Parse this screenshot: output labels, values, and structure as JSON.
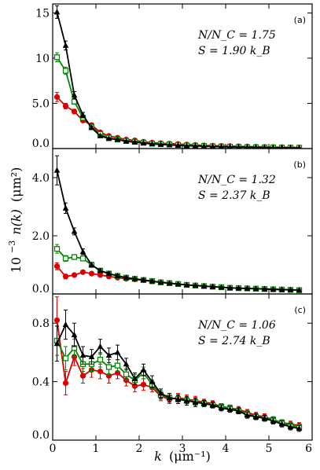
{
  "chart_data": [
    {
      "type": "line",
      "panel_label": "(a)",
      "annotation_lines": [
        "N/N_C = 1.75",
        "S = 1.90 k_B"
      ],
      "xlim": [
        0,
        6
      ],
      "ylim": [
        0,
        16
      ],
      "ytick_values": [
        0,
        5,
        10,
        15
      ],
      "ytick_labels": [
        "0.0",
        "5.0",
        "10",
        "15"
      ],
      "series": [
        {
          "marker": "triangle",
          "color": "#000000",
          "x": [
            0.1,
            0.3,
            0.5,
            0.7,
            0.9,
            1.1,
            1.3,
            1.5,
            1.7,
            1.9,
            2.1,
            2.3,
            2.5,
            2.7,
            2.9,
            3.1,
            3.3,
            3.5,
            3.7,
            3.9,
            4.1,
            4.3,
            4.5,
            4.7,
            4.9,
            5.1,
            5.3,
            5.5,
            5.7
          ],
          "y": [
            15.1,
            11.4,
            5.9,
            3.7,
            2.3,
            1.4,
            1.1,
            1.0,
            0.8,
            0.7,
            0.6,
            0.5,
            0.45,
            0.4,
            0.35,
            0.3,
            0.28,
            0.25,
            0.22,
            0.2,
            0.18,
            0.16,
            0.15,
            0.14,
            0.12,
            0.1,
            0.1,
            0.08,
            0.07
          ],
          "err": [
            0.7,
            0.5,
            0.4,
            0.3,
            0.2,
            0.15,
            0.12,
            0.1,
            0.1,
            0.1,
            0.08,
            0.08,
            0.07,
            0.06,
            0.06,
            0.05,
            0.05,
            0.05,
            0.05,
            0.04,
            0.04,
            0.04,
            0.04,
            0.04,
            0.03,
            0.03,
            0.03,
            0.03,
            0.03
          ]
        },
        {
          "marker": "square",
          "color": "#008800",
          "x": [
            0.1,
            0.3,
            0.5,
            0.7,
            0.9,
            1.1,
            1.3,
            1.5,
            1.7,
            1.9,
            2.1,
            2.3,
            2.5,
            2.7,
            2.9,
            3.1,
            3.3,
            3.5,
            3.7,
            3.9,
            4.1,
            4.3,
            4.5,
            4.7,
            4.9,
            5.1,
            5.3,
            5.5,
            5.7
          ],
          "y": [
            10.1,
            8.6,
            5.2,
            3.4,
            2.4,
            1.6,
            1.2,
            1.0,
            0.85,
            0.75,
            0.65,
            0.55,
            0.5,
            0.45,
            0.4,
            0.35,
            0.3,
            0.28,
            0.25,
            0.22,
            0.2,
            0.18,
            0.16,
            0.15,
            0.13,
            0.12,
            0.11,
            0.1,
            0.09
          ],
          "err": [
            0.5,
            0.4,
            0.3,
            0.25,
            0.2,
            0.15,
            0.12,
            0.1,
            0.1,
            0.1,
            0.08,
            0.08,
            0.07,
            0.06,
            0.06,
            0.05,
            0.05,
            0.05,
            0.05,
            0.04,
            0.04,
            0.04,
            0.04,
            0.04,
            0.03,
            0.03,
            0.03,
            0.03,
            0.03
          ]
        },
        {
          "marker": "circle",
          "color": "#dd0000",
          "x": [
            0.1,
            0.3,
            0.5,
            0.7,
            0.9,
            1.1,
            1.3,
            1.5,
            1.7,
            1.9,
            2.1,
            2.3,
            2.5,
            2.7,
            2.9,
            3.1,
            3.3,
            3.5,
            3.7,
            3.9,
            4.1,
            4.3,
            4.5,
            4.7,
            4.9,
            5.1,
            5.3,
            5.5,
            5.7
          ],
          "y": [
            5.7,
            4.7,
            4.1,
            3.1,
            2.6,
            1.8,
            1.4,
            1.2,
            1.0,
            0.9,
            0.75,
            0.65,
            0.6,
            0.55,
            0.5,
            0.45,
            0.4,
            0.35,
            0.32,
            0.3,
            0.27,
            0.25,
            0.22,
            0.2,
            0.18,
            0.16,
            0.15,
            0.13,
            0.12
          ],
          "err": [
            0.5,
            0.3,
            0.25,
            0.2,
            0.2,
            0.15,
            0.12,
            0.1,
            0.1,
            0.1,
            0.08,
            0.08,
            0.07,
            0.06,
            0.06,
            0.05,
            0.05,
            0.05,
            0.05,
            0.04,
            0.04,
            0.04,
            0.04,
            0.04,
            0.03,
            0.03,
            0.03,
            0.03,
            0.03
          ]
        }
      ]
    },
    {
      "type": "line",
      "panel_label": "(b)",
      "annotation_lines": [
        "N/N_C = 1.32",
        "S = 2.37 k_B"
      ],
      "xlim": [
        0,
        6
      ],
      "ylim": [
        0,
        5
      ],
      "ytick_values": [
        0,
        2,
        4
      ],
      "ytick_labels": [
        "0.0",
        "2.0",
        "4.0"
      ],
      "series": [
        {
          "marker": "triangle",
          "color": "#000000",
          "x": [
            0.1,
            0.3,
            0.5,
            0.7,
            0.9,
            1.1,
            1.3,
            1.5,
            1.7,
            1.9,
            2.1,
            2.3,
            2.5,
            2.7,
            2.9,
            3.1,
            3.3,
            3.5,
            3.7,
            3.9,
            4.1,
            4.3,
            4.5,
            4.7,
            4.9,
            5.1,
            5.3,
            5.5,
            5.7
          ],
          "y": [
            4.25,
            2.95,
            2.15,
            1.45,
            1.0,
            0.8,
            0.7,
            0.62,
            0.56,
            0.52,
            0.48,
            0.44,
            0.4,
            0.37,
            0.34,
            0.31,
            0.29,
            0.27,
            0.25,
            0.23,
            0.21,
            0.2,
            0.19,
            0.18,
            0.17,
            0.16,
            0.15,
            0.14,
            0.13
          ],
          "err": [
            0.5,
            0.18,
            0.12,
            0.1,
            0.08,
            0.06,
            0.05,
            0.05,
            0.04,
            0.04,
            0.04,
            0.04,
            0.03,
            0.03,
            0.03,
            0.03,
            0.03,
            0.03,
            0.03,
            0.03,
            0.03,
            0.03,
            0.03,
            0.03,
            0.03,
            0.03,
            0.03,
            0.03,
            0.03
          ]
        },
        {
          "marker": "square",
          "color": "#008800",
          "x": [
            0.1,
            0.3,
            0.5,
            0.7,
            0.9,
            1.1,
            1.3,
            1.5,
            1.7,
            1.9,
            2.1,
            2.3,
            2.5,
            2.7,
            2.9,
            3.1,
            3.3,
            3.5,
            3.7,
            3.9,
            4.1,
            4.3,
            4.5,
            4.7,
            4.9,
            5.1,
            5.3,
            5.5,
            5.7
          ],
          "y": [
            1.55,
            1.22,
            1.27,
            1.22,
            1.0,
            0.8,
            0.7,
            0.62,
            0.56,
            0.52,
            0.48,
            0.44,
            0.4,
            0.37,
            0.34,
            0.31,
            0.29,
            0.27,
            0.25,
            0.23,
            0.21,
            0.2,
            0.19,
            0.18,
            0.17,
            0.16,
            0.15,
            0.14,
            0.13
          ],
          "err": [
            0.15,
            0.1,
            0.08,
            0.07,
            0.06,
            0.05,
            0.05,
            0.05,
            0.04,
            0.04,
            0.04,
            0.04,
            0.03,
            0.03,
            0.03,
            0.03,
            0.03,
            0.03,
            0.03,
            0.03,
            0.03,
            0.03,
            0.03,
            0.03,
            0.03,
            0.03,
            0.03,
            0.03,
            0.03
          ]
        },
        {
          "marker": "circle",
          "color": "#dd0000",
          "x": [
            0.1,
            0.3,
            0.5,
            0.7,
            0.9,
            1.1,
            1.3,
            1.5,
            1.7,
            1.9,
            2.1,
            2.3,
            2.5,
            2.7,
            2.9,
            3.1,
            3.3,
            3.5,
            3.7,
            3.9,
            4.1,
            4.3,
            4.5,
            4.7,
            4.9,
            5.1,
            5.3,
            5.5,
            5.7
          ],
          "y": [
            0.95,
            0.6,
            0.65,
            0.75,
            0.7,
            0.65,
            0.6,
            0.56,
            0.52,
            0.5,
            0.47,
            0.43,
            0.4,
            0.37,
            0.34,
            0.31,
            0.29,
            0.27,
            0.25,
            0.23,
            0.21,
            0.2,
            0.19,
            0.18,
            0.17,
            0.16,
            0.15,
            0.14,
            0.13
          ],
          "err": [
            0.12,
            0.08,
            0.06,
            0.06,
            0.05,
            0.05,
            0.05,
            0.05,
            0.04,
            0.04,
            0.04,
            0.04,
            0.03,
            0.03,
            0.03,
            0.03,
            0.03,
            0.03,
            0.03,
            0.03,
            0.03,
            0.03,
            0.03,
            0.03,
            0.03,
            0.03,
            0.03,
            0.03,
            0.03
          ]
        }
      ]
    },
    {
      "type": "line",
      "panel_label": "(c)",
      "annotation_lines": [
        "N/N_C = 1.06",
        "S = 2.74 k_B"
      ],
      "xlim": [
        0,
        6
      ],
      "ylim": [
        0,
        1.0
      ],
      "ytick_values": [
        0,
        0.4,
        0.8
      ],
      "ytick_labels": [
        "0.0",
        "0.4",
        "0.8"
      ],
      "series": [
        {
          "marker": "triangle",
          "color": "#000000",
          "x": [
            0.1,
            0.3,
            0.5,
            0.7,
            0.9,
            1.1,
            1.3,
            1.5,
            1.7,
            1.9,
            2.1,
            2.3,
            2.5,
            2.7,
            2.9,
            3.1,
            3.3,
            3.5,
            3.7,
            3.9,
            4.1,
            4.3,
            4.5,
            4.7,
            4.9,
            5.1,
            5.3,
            5.5,
            5.7
          ],
          "y": [
            0.66,
            0.79,
            0.72,
            0.58,
            0.57,
            0.64,
            0.58,
            0.6,
            0.52,
            0.42,
            0.48,
            0.4,
            0.32,
            0.29,
            0.28,
            0.27,
            0.26,
            0.25,
            0.24,
            0.22,
            0.21,
            0.2,
            0.17,
            0.16,
            0.15,
            0.13,
            0.11,
            0.09,
            0.08
          ],
          "err": [
            0.12,
            0.1,
            0.08,
            0.06,
            0.05,
            0.05,
            0.05,
            0.05,
            0.04,
            0.04,
            0.04,
            0.04,
            0.03,
            0.03,
            0.03,
            0.03,
            0.03,
            0.02,
            0.02,
            0.02,
            0.02,
            0.02,
            0.02,
            0.02,
            0.02,
            0.02,
            0.02,
            0.02,
            0.02
          ]
        },
        {
          "marker": "square",
          "color": "#008800",
          "x": [
            0.1,
            0.3,
            0.5,
            0.7,
            0.9,
            1.1,
            1.3,
            1.5,
            1.7,
            1.9,
            2.1,
            2.3,
            2.5,
            2.7,
            2.9,
            3.1,
            3.3,
            3.5,
            3.7,
            3.9,
            4.1,
            4.3,
            4.5,
            4.7,
            4.9,
            5.1,
            5.3,
            5.5,
            5.7
          ],
          "y": [
            0.68,
            0.56,
            0.63,
            0.52,
            0.52,
            0.55,
            0.5,
            0.51,
            0.45,
            0.41,
            0.46,
            0.38,
            0.31,
            0.29,
            0.28,
            0.27,
            0.26,
            0.25,
            0.24,
            0.23,
            0.22,
            0.2,
            0.18,
            0.16,
            0.15,
            0.14,
            0.12,
            0.1,
            0.09
          ],
          "err": [
            0.1,
            0.08,
            0.06,
            0.05,
            0.05,
            0.05,
            0.05,
            0.04,
            0.04,
            0.04,
            0.04,
            0.03,
            0.03,
            0.03,
            0.03,
            0.03,
            0.03,
            0.02,
            0.02,
            0.02,
            0.02,
            0.02,
            0.02,
            0.02,
            0.02,
            0.02,
            0.02,
            0.02,
            0.02
          ]
        },
        {
          "marker": "circle",
          "color": "#dd0000",
          "x": [
            0.1,
            0.3,
            0.5,
            0.7,
            0.9,
            1.1,
            1.3,
            1.5,
            1.7,
            1.9,
            2.1,
            2.3,
            2.5,
            2.7,
            2.9,
            3.1,
            3.3,
            3.5,
            3.7,
            3.9,
            4.1,
            4.3,
            4.5,
            4.7,
            4.9,
            5.1,
            5.3,
            5.5,
            5.7
          ],
          "y": [
            0.82,
            0.39,
            0.57,
            0.44,
            0.48,
            0.47,
            0.44,
            0.46,
            0.41,
            0.37,
            0.38,
            0.36,
            0.3,
            0.28,
            0.29,
            0.28,
            0.27,
            0.26,
            0.25,
            0.23,
            0.22,
            0.21,
            0.19,
            0.17,
            0.16,
            0.14,
            0.12,
            0.11,
            0.1
          ],
          "err": [
            0.16,
            0.08,
            0.06,
            0.05,
            0.05,
            0.05,
            0.05,
            0.04,
            0.04,
            0.04,
            0.04,
            0.03,
            0.03,
            0.03,
            0.03,
            0.03,
            0.03,
            0.02,
            0.02,
            0.02,
            0.02,
            0.02,
            0.02,
            0.02,
            0.02,
            0.02,
            0.02,
            0.02,
            0.02
          ]
        }
      ]
    }
  ],
  "axes": {
    "xtick_values": [
      0,
      1,
      2,
      3,
      4,
      5,
      6
    ],
    "xtick_labels": [
      "0",
      "1",
      "2",
      "3",
      "4",
      "5",
      "6"
    ],
    "xlabel_main": "k",
    "xlabel_unit": "(μm⁻¹)",
    "ylabel_prefix": "10",
    "ylabel_exp": "−3",
    "ylabel_func": "n(k)",
    "ylabel_unit": "(μm²)"
  }
}
